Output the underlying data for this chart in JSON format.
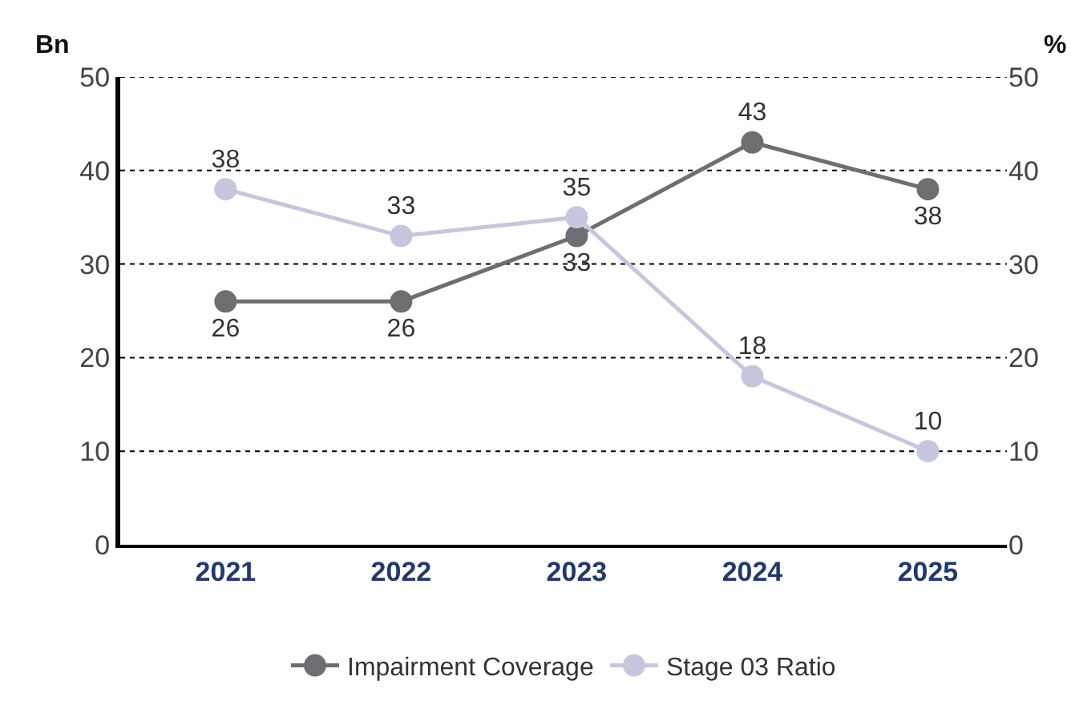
{
  "chart_data": {
    "type": "line",
    "categories": [
      "2021",
      "2022",
      "2023",
      "2024",
      "2025"
    ],
    "series": [
      {
        "name": "Impairment Coverage",
        "color": "#6d6e71",
        "values": [
          26,
          26,
          33,
          43,
          38
        ]
      },
      {
        "name": "Stage 03 Ratio",
        "color": "#c5c7de",
        "values": [
          38,
          33,
          35,
          18,
          10
        ]
      }
    ],
    "ylabel": "Bn",
    "y2label": "%",
    "ylim": [
      0,
      50
    ],
    "yticks": [
      0,
      10,
      20,
      30,
      40,
      50
    ],
    "y2lim": [
      0,
      50
    ],
    "y2ticks": [
      0,
      10,
      20,
      30,
      40,
      50
    ],
    "grid": "y",
    "legend": "bottom",
    "marker": "circle",
    "line_style": "solid",
    "data_labels": true
  }
}
